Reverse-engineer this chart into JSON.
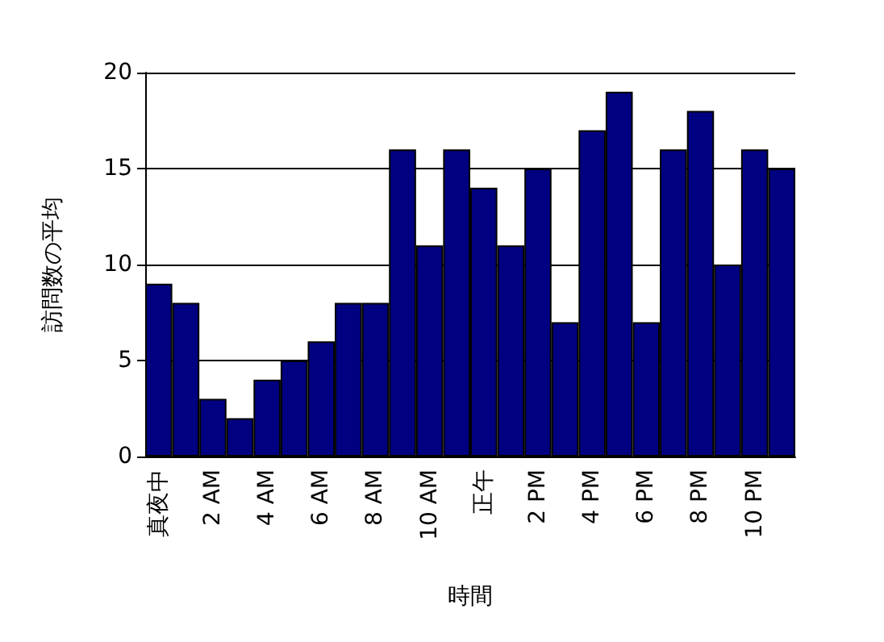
{
  "chart_data": {
    "type": "bar",
    "xlabel": "時間",
    "ylabel": "訪問数の平均",
    "categories": [
      "真夜中",
      null,
      "2 AM",
      null,
      "4 AM",
      null,
      "6 AM",
      null,
      "8 AM",
      null,
      "10 AM",
      null,
      "正午",
      null,
      "2 PM",
      null,
      "4 PM",
      null,
      "6 PM",
      null,
      "8 PM",
      null,
      "10 PM",
      null
    ],
    "values": [
      9,
      8,
      3,
      2,
      4,
      5,
      6,
      8,
      8,
      16,
      11,
      16,
      14,
      11,
      15,
      7,
      17,
      19,
      7,
      16,
      18,
      10,
      16,
      15
    ],
    "color": "#000080",
    "ylim": [
      0,
      20
    ],
    "yticks": [
      0,
      5,
      10,
      15,
      20
    ],
    "grid": "y"
  }
}
